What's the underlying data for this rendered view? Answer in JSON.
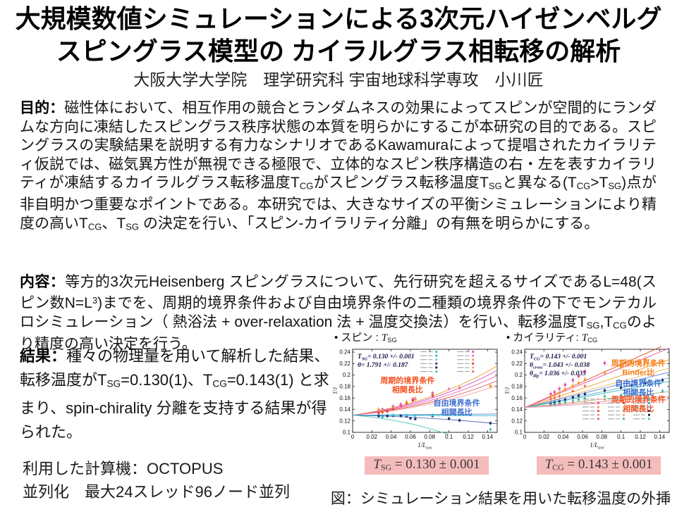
{
  "header": {
    "title_line1": "大規模数値シミュレーションによる3次元ハイゼンベルグ",
    "title_line2": "スピングラス模型の カイラルグラス相転移の解析",
    "author": "大阪大学大学院　理学研究科 宇宙地球科学専攻　小川匠"
  },
  "sections": {
    "purpose": {
      "label": "目的：",
      "text": [
        {
          "s": "磁性体において、相互作用の競合とランダムネスの効果によってスピンが空間的にランダムな方向に凍結したスピングラス秩序状態の本質を明らかにするこが本研究の目的である。スピングラスの実験結果を説明する有力なシナリオであるKawamuraによって提唱されたカイラリティ仮説では、磁気異方性が無視できる極限で、立体的なスピン秩序構造の右・左を表すカイラリティが凍結するカイラルグラス転移温度T"
        },
        {
          "sub": "CG"
        },
        {
          "s": "がスピングラス転移温度T"
        },
        {
          "sub": "SG"
        },
        {
          "s": "と異なる(T"
        },
        {
          "sub": "CG"
        },
        {
          "s": ">T"
        },
        {
          "sub": "SG"
        },
        {
          "s": ")点が非自明かつ重要なポイントである。本研究では、大きなサイズの平衡シミュレーションにより精度の高いT"
        },
        {
          "sub": "CG"
        },
        {
          "s": "、T"
        },
        {
          "sub": "SG"
        },
        {
          "s": " の決定を行い、「スピン-カイラリティ分離」の有無を明らかにする。"
        }
      ]
    },
    "method": {
      "label": "内容：",
      "text": [
        {
          "s": "等方的3次元Heisenberg スピングラスについて、先行研究を超えるサイズであるL=48(スピン数N=L"
        },
        {
          "sup": "3"
        },
        {
          "s": ")までを、周期的境界条件および自由境界条件の二種類の境界条件の下でモンテカルロシミュレーション（ 熱浴法 + over-relaxation 法 + 温度交換法）を行い、転移温度T"
        },
        {
          "sub": "SG"
        },
        {
          "s": ",T"
        },
        {
          "sub": "CG"
        },
        {
          "s": "のより精度の高い決定を行う。"
        }
      ]
    },
    "result": {
      "label": "結果：",
      "text": [
        {
          "s": "種々の物理量を用いて解析した結果、転移温度がT"
        },
        {
          "sub": "SG"
        },
        {
          "s": "=0.130(1)、T"
        },
        {
          "sub": "CG"
        },
        {
          "s": "=0.143(1) と求まり、spin-chirality 分離を支持する結果が得られた。"
        }
      ]
    }
  },
  "machine": {
    "line1": "利用した計算機：OCTOPUS",
    "line2": "並列化　最大24スレッド96ノード並列"
  },
  "figure": {
    "caption": "図：シミュレーション結果を用いた転移温度の外挿"
  },
  "chart_data": [
    {
      "type": "scatter",
      "title": [
        {
          "s": "• スピン : "
        },
        {
          "m": "T"
        },
        {
          "sub": "SG"
        }
      ],
      "xlabel": [
        {
          "m": "1/L"
        },
        {
          "sub": "ave"
        }
      ],
      "ylabel": "T/J",
      "xlim": [
        0,
        0.15
      ],
      "ylim": [
        0.1,
        0.245
      ],
      "xticks": [
        "0",
        "0.02",
        "0.04",
        "0.06",
        "0.08",
        "0.1",
        "0.12",
        "0.14"
      ],
      "yticks": [
        "0.1",
        "0.12",
        "0.14",
        "0.16",
        "0.18",
        "0.2",
        "0.22",
        "0.24"
      ],
      "grid": false,
      "intercept": 0.13,
      "annotations": [
        [
          {
            "m": "T"
          },
          {
            "sub": "SG"
          },
          {
            "s": "= 0.130 +/- 0.001"
          }
        ],
        [
          {
            "m": "θ"
          },
          {
            "s": "= 1.791 +/- 0.187"
          }
        ]
      ],
      "series": [
        {
          "name": "pbc-corr-fit-orange",
          "color": "#f59a23",
          "shape": "curve",
          "end": 0.216
        },
        {
          "name": "pbc-corr-fit-magenta",
          "color": "#d24dd2",
          "shape": "curve",
          "end": 0.208
        },
        {
          "name": "pbc-corr-fit-pink",
          "color": "#f06eaa",
          "shape": "curve",
          "end": 0.199
        },
        {
          "name": "pbc-corr-fit-red",
          "color": "#e05050",
          "shape": "curve",
          "end": 0.19
        },
        {
          "name": "pbc-corr-fit-salmon",
          "color": "#f0a0a0",
          "shape": "curve",
          "end": 0.182
        },
        {
          "name": "fbc-corr-fit-blue",
          "color": "#4f81d8",
          "shape": "line",
          "end": 0.132
        },
        {
          "name": "fbc-corr-fit-cyan",
          "color": "#39c0c8",
          "shape": "line",
          "end": 0.129
        },
        {
          "name": "fbc-corr-fit-navy",
          "color": "#5a6ab0",
          "shape": "curve",
          "end": 0.115
        },
        {
          "name": "fbc-corr-fit-teal-desc",
          "color": "#40c8b8",
          "shape": "curve",
          "end": 0.096,
          "xend": 0.1
        },
        {
          "name": "pbc-points-red",
          "color": "#e03030",
          "marker": "sq",
          "err": 0.004,
          "points": [
            [
              0.027,
              0.134
            ],
            [
              0.031,
              0.1355
            ],
            [
              0.036,
              0.137
            ],
            [
              0.042,
              0.141
            ],
            [
              0.05,
              0.147
            ],
            [
              0.056,
              0.151
            ],
            [
              0.0625,
              0.156
            ],
            [
              0.083,
              0.164
            ]
          ]
        },
        {
          "name": "pbc-points-orange",
          "color": "#f59a23",
          "marker": "sq",
          "err": 0.005,
          "points": [
            [
              0.027,
              0.14
            ],
            [
              0.031,
              0.138
            ],
            [
              0.042,
              0.144
            ],
            [
              0.056,
              0.153
            ],
            [
              0.065,
              0.159
            ],
            [
              0.083,
              0.168
            ],
            [
              0.111,
              0.178
            ],
            [
              0.143,
              0.181
            ]
          ]
        },
        {
          "name": "pbc-points-magenta",
          "color": "#d24dd2",
          "marker": "plus",
          "points": [
            [
              0.031,
              0.141
            ],
            [
              0.042,
              0.146
            ],
            [
              0.05,
              0.15
            ],
            [
              0.0625,
              0.159
            ],
            [
              0.083,
              0.169
            ],
            [
              0.1,
              0.176
            ]
          ]
        },
        {
          "name": "pbc-points-pink",
          "color": "#f06eaa",
          "marker": "plus",
          "points": [
            [
              0.027,
              0.1365
            ],
            [
              0.036,
              0.14
            ],
            [
              0.05,
              0.1475
            ],
            [
              0.065,
              0.157
            ],
            [
              0.111,
              0.177
            ]
          ]
        },
        {
          "name": "fbc-points-navy",
          "color": "#20306e",
          "marker": "sq",
          "err": 0.003,
          "points": [
            [
              0.027,
              0.1285
            ],
            [
              0.031,
              0.1275
            ],
            [
              0.036,
              0.1285
            ],
            [
              0.042,
              0.129
            ],
            [
              0.05,
              0.129
            ],
            [
              0.056,
              0.128
            ],
            [
              0.06,
              0.1245
            ],
            [
              0.065,
              0.1235
            ],
            [
              0.083,
              0.1285
            ],
            [
              0.1,
              0.124
            ],
            [
              0.111,
              0.121
            ],
            [
              0.143,
              0.116
            ]
          ]
        },
        {
          "name": "fbc-points-cyan",
          "color": "#39c0c8",
          "marker": "dot",
          "err": 0.004,
          "points": [
            [
              0.031,
              0.127
            ],
            [
              0.042,
              0.13
            ],
            [
              0.056,
              0.13
            ],
            [
              0.065,
              0.129
            ],
            [
              0.083,
              0.13
            ],
            [
              0.143,
              0.105
            ]
          ]
        }
      ],
      "labels": [
        {
          "lines": [
            "周期的境界条件",
            "相関長比"
          ],
          "color": "#f4511e",
          "x": 0.057,
          "y": 0.186
        },
        {
          "lines": [
            "自由境界条件",
            "相関長比"
          ],
          "color": "#3d6fd0",
          "x": 0.108,
          "y": 0.147
        }
      ],
      "legend": {
        "position": "top-right",
        "fx": 0.47,
        "fy": 0.03,
        "cols": 2,
        "rows": 6,
        "colors": [
          [
            "#39c0c8",
            "#d24dd2"
          ],
          [
            "#20b0c0",
            "#f06eaa"
          ],
          [
            "#80c0e0",
            "#f59a23"
          ],
          [
            "#203070",
            "#e03030"
          ],
          [
            "#101018",
            "#f0a060"
          ],
          [
            "#40c8b8",
            "#e86060"
          ]
        ]
      },
      "result_box": [
        {
          "m": "T"
        },
        {
          "sub": "SG"
        },
        {
          "s": " = 0.130 ± 0.001"
        }
      ]
    },
    {
      "type": "scatter",
      "title": [
        {
          "s": "• カイラリティ: "
        },
        {
          "m": "T"
        },
        {
          "sub": "CG"
        }
      ],
      "xlabel": [
        {
          "m": "1/L"
        },
        {
          "sub": "ave"
        }
      ],
      "ylabel": "T/J",
      "xlim": [
        0,
        0.15
      ],
      "ylim": [
        0.1,
        0.245
      ],
      "xticks": [
        "0",
        "0.02",
        "0.04",
        "0.06",
        "0.08",
        "0.1",
        "0.12",
        "0.14"
      ],
      "yticks": [
        "0.1",
        "0.12",
        "0.14",
        "0.16",
        "0.18",
        "0.2",
        "0.22",
        "0.24"
      ],
      "grid": false,
      "intercept": 0.143,
      "annotations": [
        [
          {
            "m": "T"
          },
          {
            "sub": "CG"
          },
          {
            "s": "= 0.143 +/- 0.001"
          }
        ],
        [
          {
            "m": "θ"
          },
          {
            "sub": "cross"
          },
          {
            "s": "= 1.043 +/- 0.038"
          }
        ],
        [
          {
            "m": "θ"
          },
          {
            "sub": "dip"
          },
          {
            "s": "= 1.036 +/- 0.035"
          }
        ]
      ],
      "series": [
        {
          "name": "pbc-binder-fit-red",
          "color": "#e04030",
          "shape": "line",
          "end": 0.256
        },
        {
          "name": "pbc-binder-fit-magenta",
          "color": "#e848a8",
          "shape": "line",
          "end": 0.247
        },
        {
          "name": "pbc-binder-fit-orange",
          "color": "#f59a23",
          "shape": "line",
          "end": 0.227
        },
        {
          "name": "pbc-binder-fit-lightorange",
          "color": "#f5b860",
          "shape": "line",
          "end": 0.212
        },
        {
          "name": "fbc-corr-fit-blue",
          "color": "#4f81d8",
          "shape": "line",
          "end": 0.205
        },
        {
          "name": "fbc-corr-fit-steel",
          "color": "#70a8d8",
          "shape": "line",
          "end": 0.195
        },
        {
          "name": "fbc-corr-fit-teal",
          "color": "#30b8b0",
          "shape": "line",
          "end": 0.189
        },
        {
          "name": "pbc-corr-fit-olive",
          "color": "#a8a868",
          "shape": "line",
          "end": 0.171
        },
        {
          "name": "pbc-corr-fit-salmon",
          "color": "#f08888",
          "shape": "line",
          "end": 0.163
        },
        {
          "name": "pbc-corr-fit-pink",
          "color": "#f0a8c8",
          "shape": "line",
          "end": 0.157
        },
        {
          "name": "pbc-points-pink",
          "color": "#e848a8",
          "marker": "sq",
          "err": 0.005,
          "points": [
            [
              0.027,
              0.167
            ],
            [
              0.031,
              0.17
            ],
            [
              0.036,
              0.176
            ],
            [
              0.042,
              0.183
            ],
            [
              0.05,
              0.191
            ],
            [
              0.056,
              0.198
            ],
            [
              0.0625,
              0.206
            ],
            [
              0.083,
              0.221
            ]
          ]
        },
        {
          "name": "pbc-points-orange",
          "color": "#f59a23",
          "marker": "sq",
          "err": 0.005,
          "points": [
            [
              0.027,
              0.162
            ],
            [
              0.031,
              0.165
            ],
            [
              0.036,
              0.169
            ],
            [
              0.042,
              0.175
            ],
            [
              0.05,
              0.181
            ],
            [
              0.056,
              0.186
            ],
            [
              0.0625,
              0.192
            ],
            [
              0.083,
              0.204
            ],
            [
              0.1,
              0.214
            ],
            [
              0.111,
              0.221
            ],
            [
              0.125,
              0.228
            ]
          ]
        },
        {
          "name": "fbc-points-navy",
          "color": "#20306e",
          "marker": "sq",
          "err": 0.004,
          "points": [
            [
              0.027,
              0.15
            ],
            [
              0.031,
              0.152
            ],
            [
              0.036,
              0.154
            ],
            [
              0.042,
              0.157
            ],
            [
              0.05,
              0.161
            ],
            [
              0.056,
              0.164
            ],
            [
              0.0625,
              0.167
            ],
            [
              0.083,
              0.173
            ],
            [
              0.1,
              0.178
            ],
            [
              0.111,
              0.182
            ],
            [
              0.125,
              0.186
            ],
            [
              0.143,
              0.191
            ]
          ]
        },
        {
          "name": "fbc-points-teal",
          "color": "#30b8b0",
          "marker": "dot",
          "err": 0.004,
          "points": [
            [
              0.027,
              0.148
            ],
            [
              0.031,
              0.149
            ],
            [
              0.036,
              0.151
            ],
            [
              0.042,
              0.153
            ],
            [
              0.05,
              0.155
            ],
            [
              0.056,
              0.157
            ],
            [
              0.0625,
              0.159
            ],
            [
              0.083,
              0.163
            ],
            [
              0.1,
              0.165
            ],
            [
              0.111,
              0.167
            ],
            [
              0.125,
              0.192
            ],
            [
              0.143,
              0.172
            ]
          ]
        },
        {
          "name": "pbc-points-redplus",
          "color": "#e04030",
          "marker": "plus",
          "points": [
            [
              0.027,
              0.158
            ],
            [
              0.031,
              0.16
            ],
            [
              0.036,
              0.163
            ],
            [
              0.05,
              0.172
            ],
            [
              0.0625,
              0.181
            ]
          ]
        },
        {
          "name": "pbc-points-salmonplus",
          "color": "#f08888",
          "marker": "plus",
          "points": [
            [
              0.027,
              0.1475
            ],
            [
              0.036,
              0.149
            ],
            [
              0.05,
              0.152
            ],
            [
              0.0625,
              0.154
            ],
            [
              0.083,
              0.157
            ]
          ]
        }
      ],
      "labels": [
        {
          "lines": [
            "周期的境界条件",
            "Binder比"
          ],
          "color": "#f57f17",
          "x": 0.118,
          "y": 0.216
        },
        {
          "lines": [
            "自由境界条件",
            "相関長比"
          ],
          "color": "#3d6fd0",
          "x": 0.118,
          "y": 0.181
        },
        {
          "lines": [
            "周期的境界条件",
            "相関長比"
          ],
          "color": "#f4511e",
          "x": 0.118,
          "y": 0.153
        }
      ],
      "legend": {
        "position": "bottom-right",
        "fx": 0.4,
        "fy": 0.6,
        "cols": 3,
        "rows": 6,
        "colors": [
          [
            "#f0a8c8",
            "#f08888",
            "#39c0c8"
          ],
          [
            "#e848a8",
            "#e04030",
            "#20b0c0"
          ],
          [
            "#f59a23",
            "#f5b860",
            "#80c0e0"
          ],
          [
            "#e04030",
            "#a8a868",
            "#203070"
          ],
          [
            "#f08888",
            "#f0a060",
            "#101018"
          ],
          [
            "#e848a8",
            "#30b8b0",
            "#40c8b8"
          ]
        ]
      },
      "result_box": [
        {
          "m": "T"
        },
        {
          "sub": "CG"
        },
        {
          "s": " = 0.143 ± 0.001"
        }
      ]
    }
  ]
}
